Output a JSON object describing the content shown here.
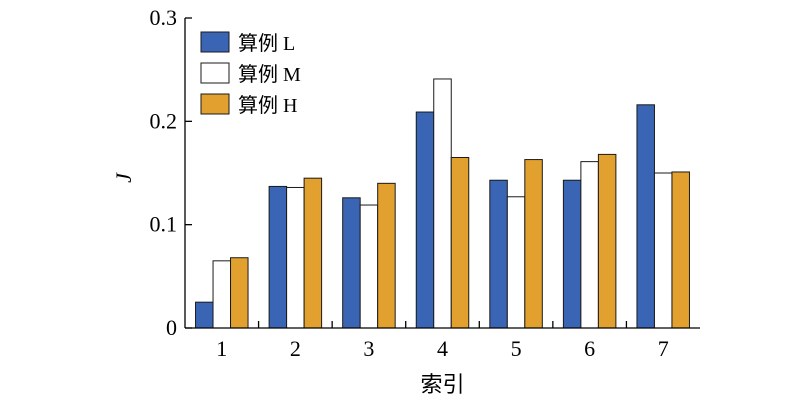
{
  "chart_data": {
    "type": "bar",
    "title": "",
    "xlabel": "索引",
    "ylabel": "J",
    "categories": [
      "1",
      "2",
      "3",
      "4",
      "5",
      "6",
      "7"
    ],
    "ylim": [
      0,
      0.3
    ],
    "yticks": [
      0,
      0.1,
      0.2,
      0.3
    ],
    "ytick_labels": [
      "0",
      "0.1",
      "0.2",
      "0.3"
    ],
    "grid": false,
    "legend_position": "top-left",
    "series": [
      {
        "name": "算例 L",
        "color": "#3a65b5",
        "values": [
          0.025,
          0.137,
          0.126,
          0.209,
          0.143,
          0.143,
          0.216
        ]
      },
      {
        "name": "算例 M",
        "color": "#ffffff",
        "values": [
          0.065,
          0.136,
          0.119,
          0.241,
          0.127,
          0.161,
          0.15
        ]
      },
      {
        "name": "算例 H",
        "color": "#e2a12e",
        "values": [
          0.068,
          0.145,
          0.14,
          0.165,
          0.163,
          0.168,
          0.151
        ]
      }
    ]
  }
}
